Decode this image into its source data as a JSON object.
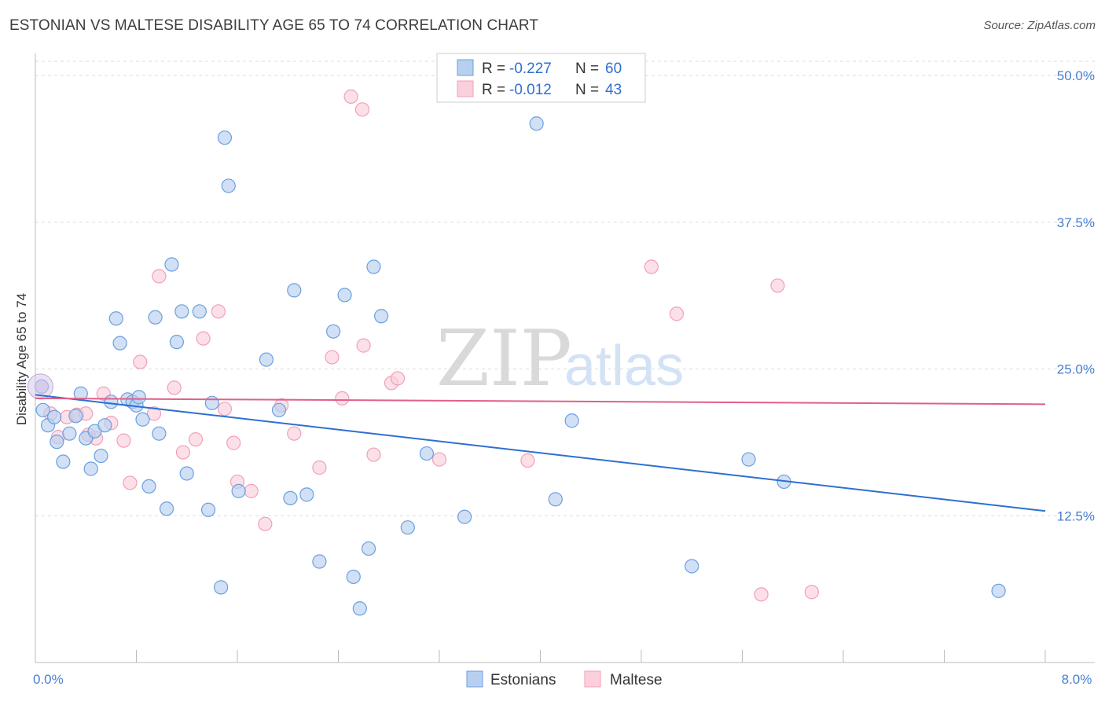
{
  "title": "ESTONIAN VS MALTESE DISABILITY AGE 65 TO 74 CORRELATION CHART",
  "source": "Source: ZipAtlas.com",
  "watermark": {
    "zip": "ZIP",
    "atlas": "atlas"
  },
  "chart_data": {
    "type": "scatter",
    "ylabel": "Disability Age 65 to 74",
    "xlim": [
      0,
      8
    ],
    "ylim": [
      0,
      52
    ],
    "x_tick_labels": [
      {
        "value": 0,
        "label": "0.0%"
      },
      {
        "value": 8,
        "label": "8.0%"
      }
    ],
    "y_ticks": [
      {
        "value": 12.5,
        "label": "12.5%"
      },
      {
        "value": 25,
        "label": "25.0%"
      },
      {
        "value": 37.5,
        "label": "37.5%"
      },
      {
        "value": 50,
        "label": "50.0%"
      }
    ],
    "grid": true,
    "legend_top": [
      {
        "r_label": "R = ",
        "r_value": "-0.227",
        "n_label": "N = ",
        "n_value": "60"
      },
      {
        "r_label": "R = ",
        "r_value": "-0.012",
        "n_label": "N = ",
        "n_value": "43"
      }
    ],
    "series": [
      {
        "name": "Estonians",
        "color": "#6aa0e0",
        "fill": "#b8d0f0",
        "line_color": "#2f6fd0",
        "trend": {
          "x": [
            0,
            8
          ],
          "y": [
            22.8,
            12.9
          ]
        },
        "points": [
          [
            0.05,
            23.5
          ],
          [
            0.06,
            21.5
          ],
          [
            0.1,
            20.2
          ],
          [
            0.15,
            20.9
          ],
          [
            0.17,
            18.8
          ],
          [
            0.22,
            17.1
          ],
          [
            0.27,
            19.5
          ],
          [
            0.32,
            21.0
          ],
          [
            0.36,
            22.9
          ],
          [
            0.4,
            19.1
          ],
          [
            0.44,
            16.5
          ],
          [
            0.47,
            19.7
          ],
          [
            0.52,
            17.6
          ],
          [
            0.55,
            20.2
          ],
          [
            0.6,
            22.2
          ],
          [
            0.64,
            29.3
          ],
          [
            0.67,
            27.2
          ],
          [
            0.73,
            22.4
          ],
          [
            0.77,
            22.2
          ],
          [
            0.8,
            21.9
          ],
          [
            0.82,
            22.6
          ],
          [
            0.85,
            20.7
          ],
          [
            0.9,
            15.0
          ],
          [
            0.95,
            29.4
          ],
          [
            0.98,
            19.5
          ],
          [
            1.04,
            13.1
          ],
          [
            1.08,
            33.9
          ],
          [
            1.12,
            27.3
          ],
          [
            1.16,
            29.9
          ],
          [
            1.2,
            16.1
          ],
          [
            1.3,
            29.9
          ],
          [
            1.37,
            13.0
          ],
          [
            1.4,
            22.1
          ],
          [
            1.47,
            6.4
          ],
          [
            1.5,
            44.7
          ],
          [
            1.53,
            40.6
          ],
          [
            1.61,
            14.6
          ],
          [
            1.83,
            25.8
          ],
          [
            1.93,
            21.5
          ],
          [
            2.02,
            14.0
          ],
          [
            2.05,
            31.7
          ],
          [
            2.15,
            14.3
          ],
          [
            2.25,
            8.6
          ],
          [
            2.36,
            28.2
          ],
          [
            2.45,
            31.3
          ],
          [
            2.52,
            7.3
          ],
          [
            2.57,
            4.6
          ],
          [
            2.64,
            9.7
          ],
          [
            2.68,
            33.7
          ],
          [
            2.74,
            29.5
          ],
          [
            2.95,
            11.5
          ],
          [
            3.1,
            17.8
          ],
          [
            3.4,
            12.4
          ],
          [
            3.97,
            45.9
          ],
          [
            4.12,
            13.9
          ],
          [
            4.25,
            20.6
          ],
          [
            5.2,
            8.2
          ],
          [
            5.65,
            17.3
          ],
          [
            5.93,
            15.4
          ],
          [
            7.63,
            6.1
          ]
        ]
      },
      {
        "name": "Maltese",
        "color": "#f0a0b8",
        "fill": "#fbd0dc",
        "line_color": "#e0608a",
        "trend": {
          "x": [
            0,
            8
          ],
          "y": [
            22.5,
            22.0
          ]
        },
        "points": [
          [
            0.05,
            23.5
          ],
          [
            0.12,
            21.2
          ],
          [
            0.18,
            19.2
          ],
          [
            0.25,
            20.9
          ],
          [
            0.33,
            21.1
          ],
          [
            0.4,
            21.2
          ],
          [
            0.48,
            19.1
          ],
          [
            0.54,
            22.9
          ],
          [
            0.6,
            20.4
          ],
          [
            0.7,
            18.9
          ],
          [
            0.75,
            15.3
          ],
          [
            0.83,
            25.6
          ],
          [
            0.94,
            21.2
          ],
          [
            0.98,
            32.9
          ],
          [
            1.1,
            23.4
          ],
          [
            1.17,
            17.9
          ],
          [
            1.27,
            19.0
          ],
          [
            1.33,
            27.6
          ],
          [
            1.45,
            29.9
          ],
          [
            1.5,
            21.6
          ],
          [
            1.57,
            18.7
          ],
          [
            1.6,
            15.4
          ],
          [
            1.71,
            14.6
          ],
          [
            1.82,
            11.8
          ],
          [
            1.95,
            21.9
          ],
          [
            2.05,
            19.5
          ],
          [
            2.25,
            16.6
          ],
          [
            2.35,
            26.0
          ],
          [
            2.43,
            22.5
          ],
          [
            2.5,
            48.2
          ],
          [
            2.59,
            47.1
          ],
          [
            2.6,
            27.0
          ],
          [
            2.68,
            17.7
          ],
          [
            2.82,
            23.8
          ],
          [
            2.87,
            24.2
          ],
          [
            3.2,
            17.3
          ],
          [
            3.9,
            17.2
          ],
          [
            4.88,
            33.7
          ],
          [
            5.08,
            29.7
          ],
          [
            5.75,
            5.8
          ],
          [
            5.88,
            32.1
          ],
          [
            6.15,
            6.0
          ],
          [
            0.42,
            19.4
          ]
        ]
      }
    ]
  },
  "bottom_legend": [
    "Estonians",
    "Maltese"
  ],
  "colors": {
    "accent_blue": "#2f6fd0",
    "accent_pink": "#e0608a",
    "axis_text": "#4a7fd0"
  }
}
